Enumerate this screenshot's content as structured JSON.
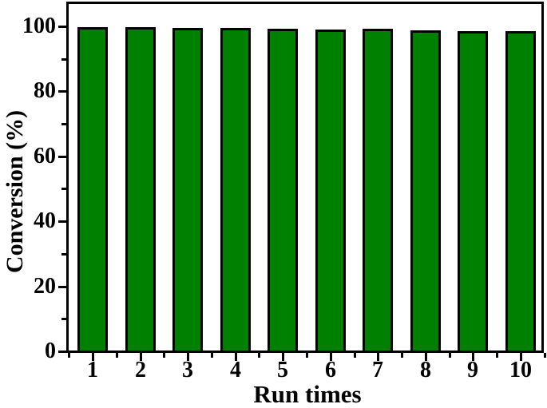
{
  "figure": {
    "background_color": "#ffffff",
    "frame_color": "#000000"
  },
  "chart_data": {
    "type": "bar",
    "title": "",
    "xlabel": "Run times",
    "ylabel": "Conversion (%)",
    "categories": [
      "1",
      "2",
      "3",
      "4",
      "5",
      "6",
      "7",
      "8",
      "9",
      "10"
    ],
    "values": [
      99.5,
      99.5,
      99.3,
      99.2,
      99.0,
      98.8,
      98.9,
      98.6,
      98.3,
      98.2
    ],
    "ylim": [
      0,
      100
    ],
    "yticks_major": [
      0,
      20,
      40,
      60,
      80,
      100
    ],
    "yticks_minor": [
      10,
      30,
      50,
      70,
      90
    ],
    "bar_color": "#008000",
    "bar_border_color": "#000000",
    "axis_color": "#000000",
    "grid": false,
    "legend": null,
    "tick_direction": "out"
  }
}
